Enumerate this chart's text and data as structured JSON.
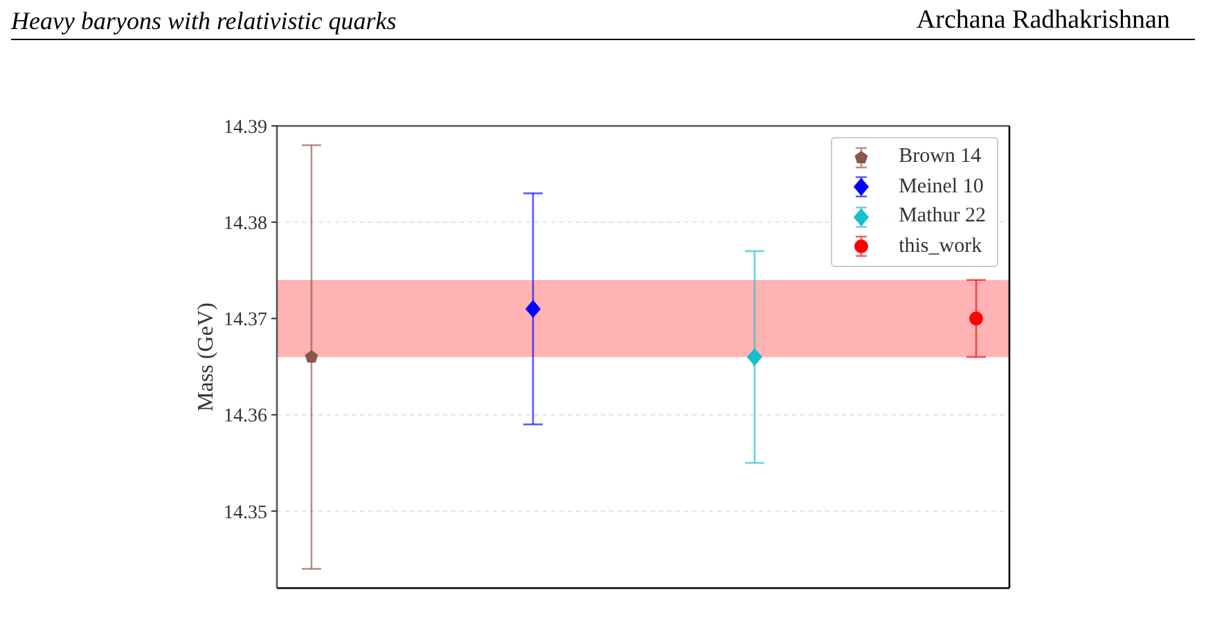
{
  "chart_data": {
    "type": "scatter",
    "title": "Heavy baryons with relativistic quarks",
    "annotations": [
      "Archana Radhakrishnan"
    ],
    "ylabel": "Mass (GeV)",
    "categories": [
      null,
      null,
      null,
      null
    ],
    "series": [
      {
        "name": "Brown 14",
        "color": "#8c564b",
        "values": [
          14.366,
          null,
          null,
          null
        ],
        "errors": [
          0.022,
          null,
          null,
          null
        ]
      },
      {
        "name": "Meinel 10",
        "color": "#0000ff",
        "marker": "diamond",
        "values": [
          null,
          14.371,
          null,
          null
        ],
        "errors": [
          null,
          0.012,
          null,
          null
        ]
      },
      {
        "name": "Mathur 22",
        "color": "#17becf",
        "marker": "diamond",
        "values": [
          null,
          null,
          14.366,
          null
        ],
        "errors": [
          null,
          null,
          0.011,
          null
        ]
      },
      {
        "name": "this_work",
        "color": "#ff0000",
        "marker": "circle",
        "values": [
          null,
          null,
          null,
          14.37
        ],
        "errors": [
          null,
          null,
          null,
          0.004
        ]
      }
    ],
    "ylim": [
      14.342,
      14.39
    ],
    "yticks": [
      14.35,
      14.36,
      14.37,
      14.38,
      14.39
    ],
    "bands": [
      {
        "axis": "y",
        "from": 14.366,
        "to": 14.374,
        "color": "#ffb3b3"
      }
    ],
    "grid": "y",
    "legend": "top right",
    "tick_labels": "y"
  }
}
